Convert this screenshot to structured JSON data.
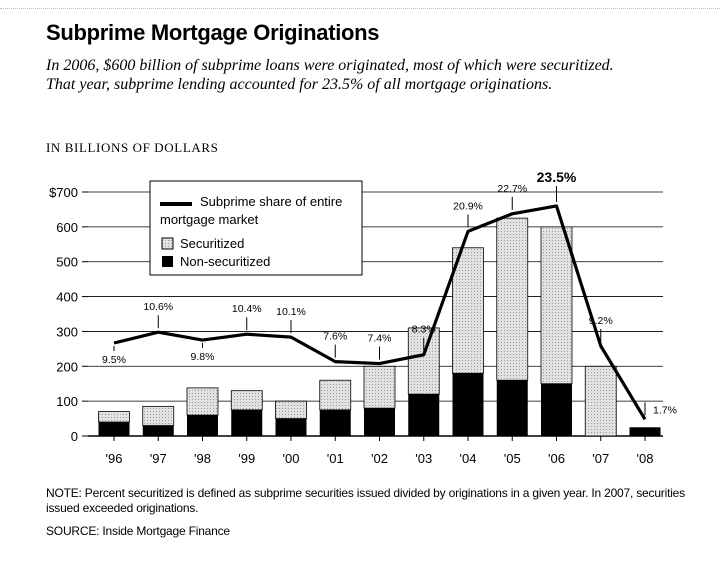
{
  "header": {
    "title": "Subprime Mortgage Originations",
    "subtitle": "In 2006, $600 billion of subprime loans were originated, most of which were securitized. That year, subprime lending accounted for 23.5% of all mortgage originations.",
    "units": "IN BILLIONS OF DOLLARS"
  },
  "chart_data": {
    "type": "bar",
    "stacked": true,
    "categories": [
      "'96",
      "'97",
      "'98",
      "'99",
      "'00",
      "'01",
      "'02",
      "'03",
      "'04",
      "'05",
      "'06",
      "'07",
      "'08"
    ],
    "y_ticks": [
      "$700",
      "600",
      "500",
      "400",
      "300",
      "200",
      "100",
      "0"
    ],
    "y_tick_values": [
      700,
      600,
      500,
      400,
      300,
      200,
      100,
      0
    ],
    "ylim": [
      0,
      700
    ],
    "grid": "horizontal",
    "series": [
      {
        "name": "Non-securitized",
        "color": "#000000",
        "values": [
          40,
          30,
          60,
          75,
          50,
          75,
          80,
          120,
          180,
          160,
          150,
          0,
          25
        ]
      },
      {
        "name": "Securitized",
        "color": "#d6d6d6",
        "pattern": "dotted",
        "values": [
          30,
          55,
          78,
          55,
          50,
          85,
          120,
          190,
          360,
          465,
          450,
          200,
          0
        ]
      }
    ],
    "line_series": {
      "name": "Subprime share of entire mortgage market",
      "labels": [
        "9.5%",
        "10.6%",
        "9.8%",
        "10.4%",
        "10.1%",
        "7.6%",
        "7.4%",
        "8.3%",
        "20.9%",
        "22.7%",
        "23.5%",
        "9.2%",
        "1.7%"
      ],
      "percent": [
        9.5,
        10.6,
        9.8,
        10.4,
        10.1,
        7.6,
        7.4,
        8.3,
        20.9,
        22.7,
        23.5,
        9.2,
        1.7
      ],
      "label_side": [
        "below",
        "above",
        "below",
        "above",
        "above",
        "above",
        "above",
        "above",
        "above",
        "above",
        "above",
        "above",
        "above"
      ]
    },
    "legend": {
      "placement": "top-left",
      "items": [
        {
          "label": "Subprime share of entire mortgage market",
          "line1": "Subprime share of entire",
          "line2": "mortgage market",
          "kind": "line"
        },
        {
          "label": "Securitized",
          "kind": "box-gray"
        },
        {
          "label": "Non-securitized",
          "kind": "box-black"
        }
      ]
    }
  },
  "footer": {
    "note": "NOTE: Percent securitized is defined as subprime securities issued divided by originations in a given year. In 2007, securities issued exceeded originations.",
    "source": "SOURCE: Inside Mortgage Finance"
  }
}
